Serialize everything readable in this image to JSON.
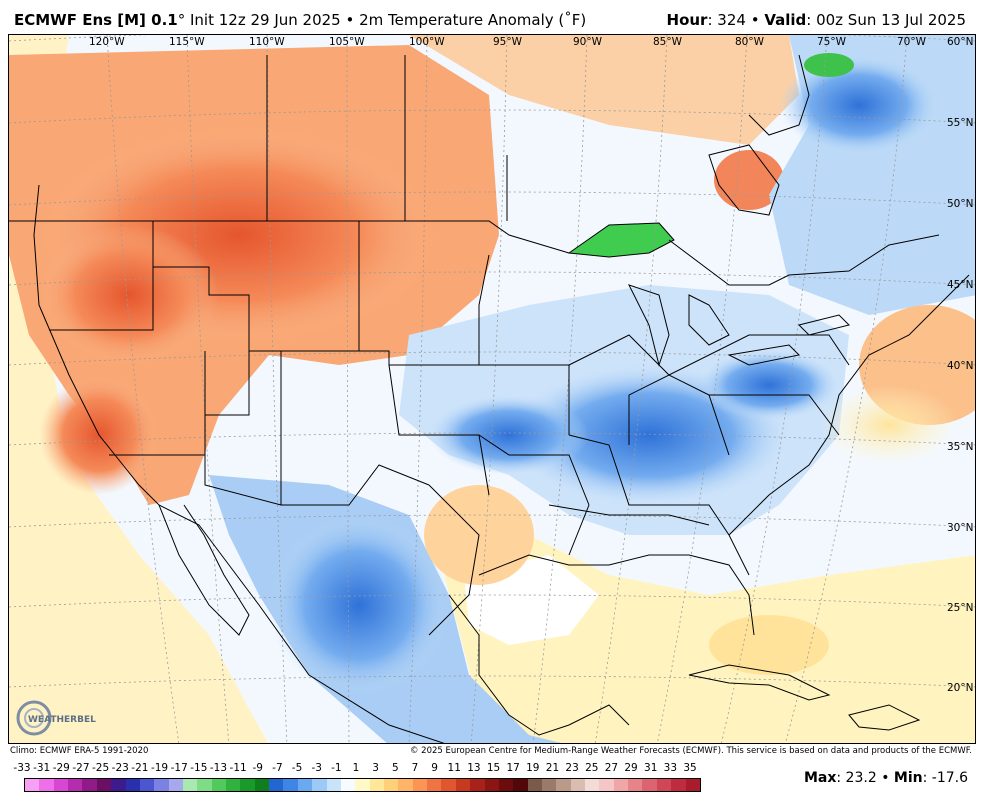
{
  "header": {
    "model_label": "ECMWF Ens [M] 0.1",
    "init_text": "Init 12z 29 Jun 2025",
    "product_text": "2m Temperature Anomaly (",
    "unit_text": "F)",
    "hour_label": "Hour",
    "hour_value": ": 324",
    "valid_label": "Valid",
    "valid_value": ": 00z Sun 13 Jul 2025"
  },
  "map": {
    "longitude_labels": [
      "120°W",
      "115°W",
      "110°W",
      "105°W",
      "100°W",
      "95°W",
      "90°W",
      "85°W",
      "80°W",
      "75°W",
      "70°W"
    ],
    "latitude_labels": [
      "60°N",
      "55°N",
      "50°N",
      "45°N",
      "40°N",
      "35°N",
      "30°N",
      "25°N",
      "20°N"
    ]
  },
  "footer": {
    "climo": "Climo: ECMWF ERA-5 1991-2020",
    "copyright": "© 2025 European Centre for Medium-Range Weather Forecasts (ECMWF). This service is based on data and products of the ECMWF."
  },
  "legend": {
    "ticks": [
      "-33",
      "-31",
      "-29",
      "-27",
      "-25",
      "-23",
      "-21",
      "-19",
      "-17",
      "-15",
      "-13",
      "-11",
      "-9",
      "-7",
      "-5",
      "-3",
      "-1",
      "1",
      "3",
      "5",
      "7",
      "9",
      "11",
      "13",
      "15",
      "17",
      "19",
      "21",
      "23",
      "25",
      "27",
      "29",
      "31",
      "33",
      "35"
    ],
    "colors": [
      "#f7a1f5",
      "#ee6fe9",
      "#d946d3",
      "#b62cae",
      "#8f1a88",
      "#6b0f66",
      "#3d1b8f",
      "#2a2fae",
      "#4b57d1",
      "#7b82e4",
      "#a7a9ef",
      "#a9e8b0",
      "#7edc84",
      "#52c95b",
      "#2fb33c",
      "#1a9a2a",
      "#0f7f1e",
      "#2266d1",
      "#3d86e6",
      "#6aa8f0",
      "#9ccaf6",
      "#c9e4fa",
      "#f6fbff",
      "#fff9c8",
      "#ffe79a",
      "#ffd07a",
      "#ffb468",
      "#fb9455",
      "#f07443",
      "#e1552f",
      "#c83a1f",
      "#a8221a",
      "#8a1512",
      "#6b0d0d",
      "#520808",
      "#7b5a4a",
      "#9a7b6b",
      "#bb9a8a",
      "#d8bdb0",
      "#f3dcd6",
      "#f5c6c6",
      "#f0a5a8",
      "#e7848a",
      "#dc6470",
      "#cf4656",
      "#bf2c3f",
      "#a81c2c"
    ],
    "max_label": "Max",
    "max_value": ": 23.2",
    "min_label": "Min",
    "min_value": ": -17.6"
  },
  "logo_text": "WEATHERBELL"
}
